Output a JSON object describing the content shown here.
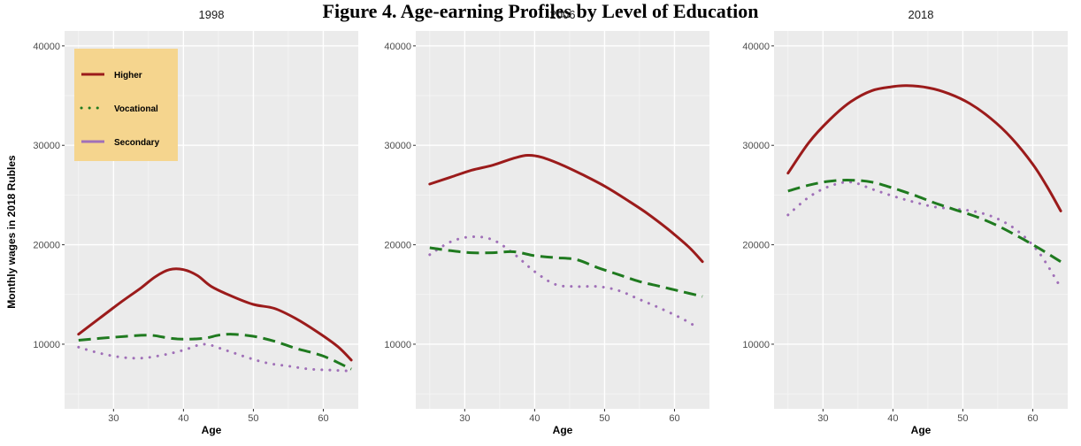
{
  "chart_data": {
    "type": "line",
    "title": "Figure 4. Age-earning Profiles by Level of Education",
    "xlabel": "Age",
    "ylabel": "Monthly wages in 2018 Rubles",
    "xlim": [
      23,
      65
    ],
    "ylim": [
      3500,
      41500
    ],
    "xticks": [
      30,
      40,
      50,
      60
    ],
    "yticks": [
      10000,
      20000,
      30000,
      40000
    ],
    "grid": true,
    "legend_position": "top-left",
    "series_styles": [
      {
        "name": "Higher",
        "color": "#9b1b1b",
        "dash": "solid"
      },
      {
        "name": "Vocational",
        "color": "#1f7a1f",
        "dash": "dotted"
      },
      {
        "name": "Secondary",
        "color": "#a070b8",
        "dash": "solid"
      }
    ],
    "panels": [
      {
        "label": "1998",
        "series": [
          {
            "name": "Higher",
            "x": [
              25,
              28,
              31,
              34,
              36,
              38,
              40,
              42,
              44,
              47,
              50,
              53,
              56,
              59,
              62,
              64
            ],
            "values": [
              11000,
              12600,
              14200,
              15700,
              16800,
              17500,
              17500,
              16900,
              15800,
              14800,
              14000,
              13600,
              12600,
              11300,
              9800,
              8400
            ]
          },
          {
            "name": "Vocational",
            "x": [
              25,
              30,
              35,
              38,
              40,
              43,
              45,
              47,
              50,
              53,
              56,
              60,
              64
            ],
            "values": [
              10400,
              10700,
              10900,
              10600,
              10500,
              10600,
              10900,
              11000,
              10800,
              10300,
              9600,
              8800,
              7500
            ]
          },
          {
            "name": "Secondary",
            "x": [
              25,
              28,
              31,
              34,
              37,
              40,
              43,
              46,
              49,
              52,
              55,
              58,
              61,
              64
            ],
            "values": [
              9700,
              9100,
              8700,
              8600,
              8900,
              9400,
              10000,
              9400,
              8700,
              8100,
              7800,
              7500,
              7400,
              7300
            ]
          }
        ]
      },
      {
        "label": "2006",
        "series": [
          {
            "name": "Higher",
            "x": [
              25,
              28,
              31,
              34,
              37,
              39,
              41,
              44,
              47,
              50,
              53,
              56,
              59,
              62,
              64
            ],
            "values": [
              26100,
              26800,
              27500,
              28000,
              28700,
              29000,
              28800,
              28000,
              27000,
              25900,
              24600,
              23200,
              21600,
              19800,
              18300
            ]
          },
          {
            "name": "Vocational",
            "x": [
              25,
              28,
              31,
              34,
              37,
              40,
              43,
              46,
              49,
              52,
              55,
              58,
              61,
              64
            ],
            "values": [
              19700,
              19400,
              19200,
              19200,
              19300,
              18900,
              18700,
              18500,
              17700,
              17000,
              16300,
              15800,
              15300,
              14800
            ]
          },
          {
            "name": "Secondary",
            "x": [
              25,
              28,
              31,
              34,
              37,
              40,
              43,
              46,
              49,
              52,
              55,
              58,
              61,
              63
            ],
            "values": [
              19000,
              20300,
              20800,
              20500,
              19100,
              17300,
              16000,
              15800,
              15800,
              15400,
              14500,
              13600,
              12600,
              11800
            ]
          }
        ]
      },
      {
        "label": "2018",
        "series": [
          {
            "name": "Higher",
            "x": [
              25,
              28,
              31,
              34,
              37,
              40,
              42,
              45,
              48,
              51,
              54,
              57,
              60,
              62,
              64
            ],
            "values": [
              27200,
              30300,
              32600,
              34400,
              35500,
              35900,
              36000,
              35800,
              35200,
              34200,
              32700,
              30700,
              28100,
              25900,
              23400
            ]
          },
          {
            "name": "Vocational",
            "x": [
              25,
              28,
              31,
              34,
              37,
              40,
              43,
              46,
              49,
              52,
              55,
              58,
              61,
              64
            ],
            "values": [
              25400,
              26000,
              26400,
              26500,
              26300,
              25700,
              25000,
              24200,
              23500,
              22800,
              21900,
              20800,
              19600,
              18300
            ]
          },
          {
            "name": "Secondary",
            "x": [
              25,
              28,
              31,
              34,
              37,
              40,
              43,
              46,
              49,
              52,
              55,
              58,
              61,
              64
            ],
            "values": [
              23000,
              24800,
              25900,
              26300,
              25600,
              24900,
              24300,
              23800,
              23600,
              23300,
              22600,
              21300,
              19100,
              15700
            ]
          }
        ]
      }
    ]
  }
}
